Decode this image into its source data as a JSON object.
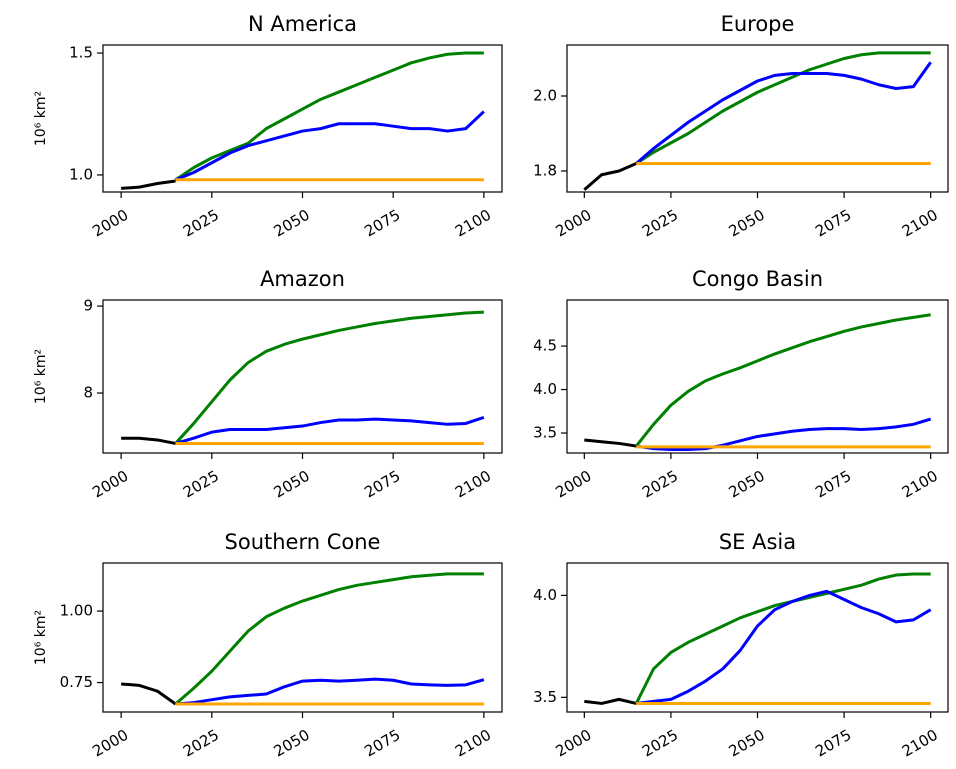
{
  "chart_data": [
    {
      "type": "line",
      "title": "N America",
      "ylabel": "10⁶ km²",
      "x": [
        2000,
        2005,
        2010,
        2015,
        2020,
        2025,
        2030,
        2035,
        2040,
        2045,
        2050,
        2055,
        2060,
        2065,
        2070,
        2075,
        2080,
        2085,
        2090,
        2095,
        2100
      ],
      "xlim": [
        1995,
        2105
      ],
      "xticks": [
        2000,
        2025,
        2050,
        2075,
        2100
      ],
      "ylim": [
        0.93,
        1.533
      ],
      "yticks": [
        {
          "value": 1.0,
          "label": "1.0"
        },
        {
          "value": 1.5,
          "label": "1.5"
        }
      ],
      "series": [
        {
          "color": "#000000",
          "values": [
            0.945,
            0.95,
            0.965,
            0.975,
            null,
            null,
            null,
            null,
            null,
            null,
            null,
            null,
            null,
            null,
            null,
            null,
            null,
            null,
            null,
            null,
            null
          ]
        },
        {
          "color": "#008000",
          "values": [
            null,
            null,
            null,
            0.98,
            1.03,
            1.07,
            1.1,
            1.13,
            1.19,
            1.23,
            1.27,
            1.31,
            1.34,
            1.37,
            1.4,
            1.43,
            1.46,
            1.48,
            1.495,
            1.5,
            1.5
          ]
        },
        {
          "color": "#0000ff",
          "values": [
            null,
            null,
            null,
            0.98,
            1.01,
            1.05,
            1.09,
            1.12,
            1.14,
            1.16,
            1.18,
            1.19,
            1.21,
            1.21,
            1.21,
            1.2,
            1.19,
            1.19,
            1.18,
            1.19,
            1.26
          ]
        },
        {
          "color": "#ffa500",
          "values": [
            null,
            null,
            null,
            0.98,
            0.98,
            0.98,
            0.98,
            0.98,
            0.98,
            0.98,
            0.98,
            0.98,
            0.98,
            0.98,
            0.98,
            0.98,
            0.98,
            0.98,
            0.98,
            0.98,
            0.98
          ]
        }
      ]
    },
    {
      "type": "line",
      "title": "Europe",
      "x": [
        2000,
        2005,
        2010,
        2015,
        2020,
        2025,
        2030,
        2035,
        2040,
        2045,
        2050,
        2055,
        2060,
        2065,
        2070,
        2075,
        2080,
        2085,
        2090,
        2095,
        2100
      ],
      "xlim": [
        1995,
        2105
      ],
      "xticks": [
        2000,
        2025,
        2050,
        2075,
        2100
      ],
      "ylim": [
        1.744,
        2.136
      ],
      "yticks": [
        {
          "value": 1.8,
          "label": "1.8"
        },
        {
          "value": 2.0,
          "label": "2.0"
        }
      ],
      "series": [
        {
          "color": "#000000",
          "values": [
            1.75,
            1.79,
            1.8,
            1.82,
            null,
            null,
            null,
            null,
            null,
            null,
            null,
            null,
            null,
            null,
            null,
            null,
            null,
            null,
            null,
            null,
            null
          ]
        },
        {
          "color": "#008000",
          "values": [
            null,
            null,
            null,
            1.82,
            1.85,
            1.875,
            1.9,
            1.93,
            1.96,
            1.985,
            2.01,
            2.03,
            2.05,
            2.07,
            2.085,
            2.1,
            2.11,
            2.115,
            2.115,
            2.115,
            2.115
          ]
        },
        {
          "color": "#0000ff",
          "values": [
            null,
            null,
            null,
            1.82,
            1.86,
            1.895,
            1.93,
            1.96,
            1.99,
            2.015,
            2.04,
            2.055,
            2.06,
            2.06,
            2.06,
            2.055,
            2.045,
            2.03,
            2.02,
            2.025,
            2.09
          ]
        },
        {
          "color": "#ffa500",
          "values": [
            null,
            null,
            null,
            1.82,
            1.82,
            1.82,
            1.82,
            1.82,
            1.82,
            1.82,
            1.82,
            1.82,
            1.82,
            1.82,
            1.82,
            1.82,
            1.82,
            1.82,
            1.82,
            1.82,
            1.82
          ]
        }
      ]
    },
    {
      "type": "line",
      "title": "Amazon",
      "ylabel": "10⁶ km²",
      "x": [
        2000,
        2005,
        2010,
        2015,
        2020,
        2025,
        2030,
        2035,
        2040,
        2045,
        2050,
        2055,
        2060,
        2065,
        2070,
        2075,
        2080,
        2085,
        2090,
        2095,
        2100
      ],
      "xlim": [
        1995,
        2105
      ],
      "xticks": [
        2000,
        2025,
        2050,
        2075,
        2100
      ],
      "ylim": [
        7.31,
        9.07
      ],
      "yticks": [
        8,
        9
      ],
      "series": [
        {
          "color": "#000000",
          "values": [
            7.48,
            7.48,
            7.46,
            7.42,
            null,
            null,
            null,
            null,
            null,
            null,
            null,
            null,
            null,
            null,
            null,
            null,
            null,
            null,
            null,
            null,
            null
          ]
        },
        {
          "color": "#008000",
          "values": [
            null,
            null,
            null,
            7.42,
            7.65,
            7.9,
            8.15,
            8.35,
            8.48,
            8.56,
            8.62,
            8.67,
            8.72,
            8.76,
            8.8,
            8.83,
            8.86,
            8.88,
            8.9,
            8.92,
            8.93
          ]
        },
        {
          "color": "#0000ff",
          "values": [
            null,
            null,
            null,
            7.42,
            7.48,
            7.55,
            7.58,
            7.58,
            7.58,
            7.6,
            7.62,
            7.66,
            7.69,
            7.69,
            7.7,
            7.69,
            7.68,
            7.66,
            7.64,
            7.65,
            7.72
          ]
        },
        {
          "color": "#ffa500",
          "values": [
            null,
            null,
            null,
            7.42,
            7.42,
            7.42,
            7.42,
            7.42,
            7.42,
            7.42,
            7.42,
            7.42,
            7.42,
            7.42,
            7.42,
            7.42,
            7.42,
            7.42,
            7.42,
            7.42,
            7.42
          ]
        }
      ]
    },
    {
      "type": "line",
      "title": "Congo Basin",
      "x": [
        2000,
        2005,
        2010,
        2015,
        2020,
        2025,
        2030,
        2035,
        2040,
        2045,
        2050,
        2055,
        2060,
        2065,
        2070,
        2075,
        2080,
        2085,
        2090,
        2095,
        2100
      ],
      "xlim": [
        1995,
        2105
      ],
      "xticks": [
        2000,
        2025,
        2050,
        2075,
        2100
      ],
      "ylim": [
        3.27,
        5.03
      ],
      "yticks": [
        3.5,
        {
          "value": 4.0,
          "label": "4.0"
        },
        4.5
      ],
      "series": [
        {
          "color": "#000000",
          "values": [
            3.42,
            3.4,
            3.38,
            3.35,
            null,
            null,
            null,
            null,
            null,
            null,
            null,
            null,
            null,
            null,
            null,
            null,
            null,
            null,
            null,
            null,
            null
          ]
        },
        {
          "color": "#008000",
          "values": [
            null,
            null,
            null,
            3.35,
            3.6,
            3.82,
            3.98,
            4.1,
            4.18,
            4.25,
            4.33,
            4.41,
            4.48,
            4.55,
            4.61,
            4.67,
            4.72,
            4.76,
            4.8,
            4.83,
            4.86
          ]
        },
        {
          "color": "#0000ff",
          "values": [
            null,
            null,
            null,
            3.35,
            3.32,
            3.31,
            3.31,
            3.32,
            3.36,
            3.41,
            3.46,
            3.49,
            3.52,
            3.54,
            3.55,
            3.55,
            3.54,
            3.55,
            3.57,
            3.6,
            3.66
          ]
        },
        {
          "color": "#ffa500",
          "values": [
            null,
            null,
            null,
            3.34,
            3.34,
            3.34,
            3.34,
            3.34,
            3.34,
            3.34,
            3.34,
            3.34,
            3.34,
            3.34,
            3.34,
            3.34,
            3.34,
            3.34,
            3.34,
            3.34,
            3.34
          ]
        }
      ]
    },
    {
      "type": "line",
      "title": "Southern Cone",
      "ylabel": "10⁶ km²",
      "x": [
        2000,
        2005,
        2010,
        2015,
        2020,
        2025,
        2030,
        2035,
        2040,
        2045,
        2050,
        2055,
        2060,
        2065,
        2070,
        2075,
        2080,
        2085,
        2090,
        2095,
        2100
      ],
      "xlim": [
        1995,
        2105
      ],
      "xticks": [
        2000,
        2025,
        2050,
        2075,
        2100
      ],
      "ylim": [
        0.647,
        1.168
      ],
      "yticks": [
        {
          "value": 0.75,
          "label": "0.75"
        },
        {
          "value": 1.0,
          "label": "1.00"
        }
      ],
      "series": [
        {
          "color": "#000000",
          "values": [
            0.745,
            0.74,
            0.72,
            0.675,
            null,
            null,
            null,
            null,
            null,
            null,
            null,
            null,
            null,
            null,
            null,
            null,
            null,
            null,
            null,
            null,
            null
          ]
        },
        {
          "color": "#008000",
          "values": [
            null,
            null,
            null,
            0.675,
            0.73,
            0.79,
            0.86,
            0.93,
            0.98,
            1.01,
            1.035,
            1.055,
            1.075,
            1.09,
            1.1,
            1.11,
            1.12,
            1.125,
            1.13,
            1.13,
            1.13
          ]
        },
        {
          "color": "#0000ff",
          "values": [
            null,
            null,
            null,
            0.675,
            0.68,
            0.69,
            0.7,
            0.705,
            0.71,
            0.735,
            0.755,
            0.758,
            0.755,
            0.758,
            0.762,
            0.758,
            0.745,
            0.742,
            0.74,
            0.742,
            0.76
          ]
        },
        {
          "color": "#ffa500",
          "values": [
            null,
            null,
            null,
            0.675,
            0.675,
            0.675,
            0.675,
            0.675,
            0.675,
            0.675,
            0.675,
            0.675,
            0.675,
            0.675,
            0.675,
            0.675,
            0.675,
            0.675,
            0.675,
            0.675,
            0.675
          ]
        }
      ]
    },
    {
      "type": "line",
      "title": "SE Asia",
      "x": [
        2000,
        2005,
        2010,
        2015,
        2020,
        2025,
        2030,
        2035,
        2040,
        2045,
        2050,
        2055,
        2060,
        2065,
        2070,
        2075,
        2080,
        2085,
        2090,
        2095,
        2100
      ],
      "xlim": [
        1995,
        2105
      ],
      "xticks": [
        2000,
        2025,
        2050,
        2075,
        2100
      ],
      "ylim": [
        3.428,
        4.159
      ],
      "yticks": [
        3.5,
        {
          "value": 4.0,
          "label": "4.0"
        }
      ],
      "series": [
        {
          "color": "#000000",
          "values": [
            3.48,
            3.47,
            3.49,
            3.47,
            null,
            null,
            null,
            null,
            null,
            null,
            null,
            null,
            null,
            null,
            null,
            null,
            null,
            null,
            null,
            null,
            null
          ]
        },
        {
          "color": "#008000",
          "values": [
            null,
            null,
            null,
            3.47,
            3.64,
            3.72,
            3.77,
            3.81,
            3.85,
            3.89,
            3.92,
            3.95,
            3.97,
            3.99,
            4.01,
            4.03,
            4.05,
            4.08,
            4.1,
            4.105,
            4.105
          ]
        },
        {
          "color": "#0000ff",
          "values": [
            null,
            null,
            null,
            3.47,
            3.48,
            3.49,
            3.53,
            3.58,
            3.64,
            3.73,
            3.85,
            3.93,
            3.97,
            4.0,
            4.02,
            3.98,
            3.94,
            3.91,
            3.87,
            3.88,
            3.93
          ]
        },
        {
          "color": "#ffa500",
          "values": [
            null,
            null,
            null,
            3.47,
            3.47,
            3.47,
            3.47,
            3.47,
            3.47,
            3.47,
            3.47,
            3.47,
            3.47,
            3.47,
            3.47,
            3.47,
            3.47,
            3.47,
            3.47,
            3.47,
            3.47
          ]
        }
      ]
    }
  ]
}
